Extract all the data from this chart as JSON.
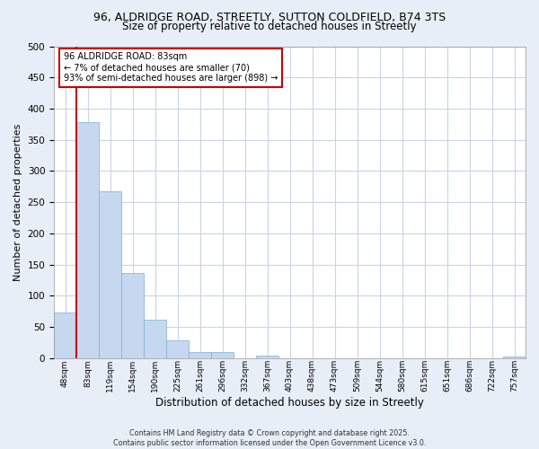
{
  "title_line1": "96, ALDRIDGE ROAD, STREETLY, SUTTON COLDFIELD, B74 3TS",
  "title_line2": "Size of property relative to detached houses in Streetly",
  "bar_labels": [
    "48sqm",
    "83sqm",
    "119sqm",
    "154sqm",
    "190sqm",
    "225sqm",
    "261sqm",
    "296sqm",
    "332sqm",
    "367sqm",
    "403sqm",
    "438sqm",
    "473sqm",
    "509sqm",
    "544sqm",
    "580sqm",
    "615sqm",
    "651sqm",
    "686sqm",
    "722sqm",
    "757sqm"
  ],
  "bar_values": [
    73,
    378,
    267,
    137,
    62,
    29,
    10,
    10,
    0,
    4,
    0,
    0,
    0,
    0,
    0,
    0,
    0,
    0,
    0,
    0,
    2
  ],
  "bar_color": "#c5d8f0",
  "bar_edge_color": "#7aafd4",
  "highlight_bar_index": 1,
  "highlight_color": "#cc0000",
  "ylabel": "Number of detached properties",
  "xlabel": "Distribution of detached houses by size in Streetly",
  "ylim": [
    0,
    500
  ],
  "yticks": [
    0,
    50,
    100,
    150,
    200,
    250,
    300,
    350,
    400,
    450,
    500
  ],
  "annotation_title": "96 ALDRIDGE ROAD: 83sqm",
  "annotation_line2": "← 7% of detached houses are smaller (70)",
  "annotation_line3": "93% of semi-detached houses are larger (898) →",
  "footer_line1": "Contains HM Land Registry data © Crown copyright and database right 2025.",
  "footer_line2": "Contains public sector information licensed under the Open Government Licence v3.0.",
  "bg_color": "#e8eef8",
  "plot_bg_color": "#ffffff",
  "grid_color": "#c8d4e8"
}
